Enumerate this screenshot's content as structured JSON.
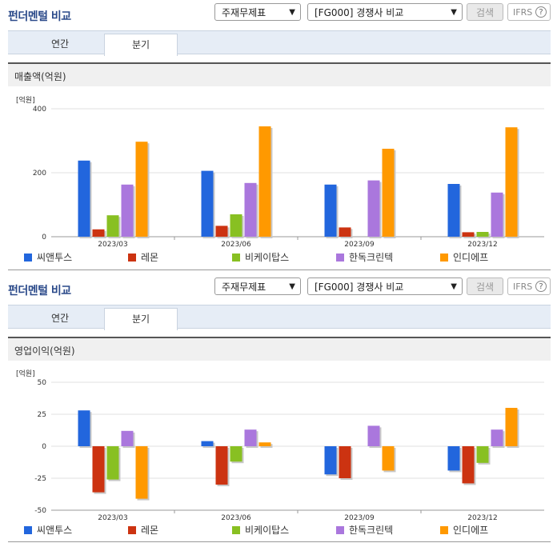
{
  "sections": [
    {
      "title": "펀더멘털 비교",
      "select1": "주재무제표",
      "select2": "[FG000] 경쟁사 비교",
      "search_label": "검색",
      "ifrs_label": "IFRS",
      "ifrs_help": "?",
      "tabs": [
        {
          "label": "연간"
        },
        {
          "label": "분기"
        }
      ],
      "active_tab": "분기",
      "metric_label": "매출액(억원)",
      "unit_label": "[억원]"
    },
    {
      "title": "펀더멘털 비교",
      "select1": "주재무제표",
      "select2": "[FG000] 경쟁사 비교",
      "search_label": "검색",
      "ifrs_label": "IFRS",
      "ifrs_help": "?",
      "tabs": [
        {
          "label": "연간"
        },
        {
          "label": "분기"
        }
      ],
      "active_tab": "분기",
      "metric_label": "영업이익(억원)",
      "unit_label": "[억원]"
    }
  ],
  "chart_data": [
    {
      "type": "bar",
      "title": "매출액(억원)",
      "ylabel": "[억원]",
      "categories": [
        "2023/03",
        "2023/06",
        "2023/09",
        "2023/12"
      ],
      "ylim": [
        0,
        400
      ],
      "yticks": [
        0,
        200,
        400
      ],
      "series": [
        {
          "name": "씨앤투스",
          "color": "#2266dd",
          "values": [
            238,
            206,
            163,
            165
          ]
        },
        {
          "name": "레몬",
          "color": "#cc3311",
          "values": [
            23,
            34,
            29,
            14
          ]
        },
        {
          "name": "비케이탑스",
          "color": "#88c022",
          "values": [
            67,
            70,
            null,
            15
          ]
        },
        {
          "name": "한독크린텍",
          "color": "#aa77dd",
          "values": [
            163,
            168,
            176,
            138
          ]
        },
        {
          "name": "인디에프",
          "color": "#ff9900",
          "values": [
            297,
            345,
            275,
            342
          ]
        }
      ],
      "grid": true,
      "legend_position": "bottom"
    },
    {
      "type": "bar",
      "title": "영업이익(억원)",
      "ylabel": "[억원]",
      "categories": [
        "2023/03",
        "2023/06",
        "2023/09",
        "2023/12"
      ],
      "ylim": [
        -50,
        50
      ],
      "yticks": [
        -50,
        -25,
        0,
        25,
        50
      ],
      "series": [
        {
          "name": "씨앤투스",
          "color": "#2266dd",
          "values": [
            28,
            4,
            -22,
            -19
          ]
        },
        {
          "name": "레몬",
          "color": "#cc3311",
          "values": [
            -36,
            -30,
            -25,
            -29
          ]
        },
        {
          "name": "비케이탑스",
          "color": "#88c022",
          "values": [
            -26,
            -12,
            null,
            -13
          ]
        },
        {
          "name": "한독크린텍",
          "color": "#aa77dd",
          "values": [
            12,
            13,
            16,
            13
          ]
        },
        {
          "name": "인디에프",
          "color": "#ff9900",
          "values": [
            -41,
            3,
            -19,
            30
          ]
        }
      ],
      "grid": true,
      "legend_position": "bottom"
    }
  ]
}
